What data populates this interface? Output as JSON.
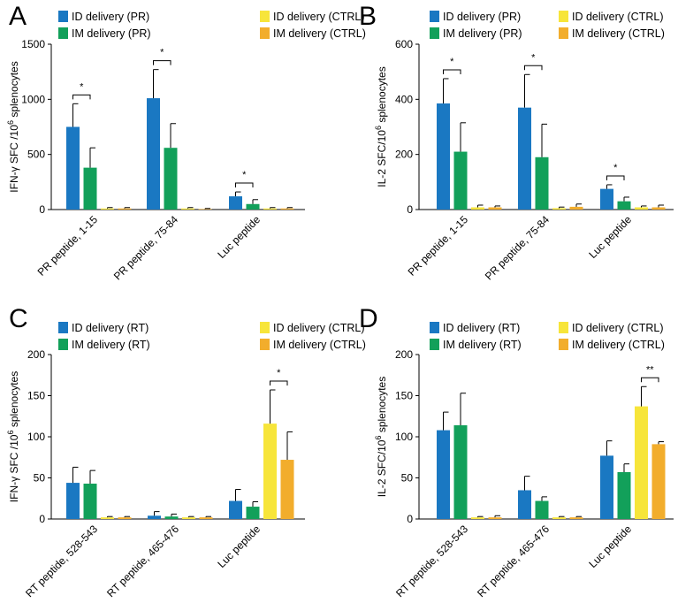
{
  "colors": {
    "id_main": "#1a78c2",
    "im_main": "#12a05a",
    "id_ctrl": "#f7e53a",
    "im_ctrl": "#f2ad2c",
    "axis": "#000000"
  },
  "chart_data": [
    {
      "panel": "A",
      "type": "bar",
      "ylabel_prefix": "IFN-γ SFC /10",
      "ylabel_sup": "6",
      "ylabel_suffix": " splenocytes",
      "ylim": [
        0,
        1500
      ],
      "yticks": [
        "0",
        "500",
        "1000",
        "1500"
      ],
      "ytick_values": [
        0,
        500,
        1000,
        1500
      ],
      "categories": [
        "PR peptide, 1-15",
        "PR peptide, 75-84",
        "Luc peptide"
      ],
      "legend": [
        "ID delivery (PR)",
        "IM delivery (PR)",
        "ID delivery (CTRL)",
        "IM delivery (CTRL)"
      ],
      "series": [
        {
          "name": "ID delivery (PR)",
          "values": [
            750,
            1010,
            120
          ],
          "errors": [
            210,
            260,
            40
          ]
        },
        {
          "name": "IM delivery (PR)",
          "values": [
            380,
            560,
            50
          ],
          "errors": [
            180,
            220,
            40
          ]
        },
        {
          "name": "ID delivery (CTRL)",
          "values": [
            10,
            10,
            10
          ],
          "errors": [
            8,
            8,
            8
          ]
        },
        {
          "name": "IM delivery (CTRL)",
          "values": [
            10,
            5,
            10
          ],
          "errors": [
            8,
            5,
            8
          ]
        }
      ],
      "significance": [
        {
          "category": 0,
          "from": 0,
          "to": 1,
          "label": "*"
        },
        {
          "category": 1,
          "from": 0,
          "to": 1,
          "label": "*"
        },
        {
          "category": 2,
          "from": 0,
          "to": 1,
          "label": "*"
        }
      ]
    },
    {
      "panel": "B",
      "type": "bar",
      "ylabel_prefix": "IL-2 SFC/10",
      "ylabel_sup": "6",
      "ylabel_suffix": " splenocytes",
      "ylim": [
        0,
        600
      ],
      "yticks": [
        "0",
        "200",
        "400",
        "600"
      ],
      "ytick_values": [
        0,
        200,
        400,
        600
      ],
      "categories": [
        "PR peptide, 1-15",
        "PR peptide, 75-84",
        "Luc peptide"
      ],
      "legend": [
        "ID delivery (PR)",
        "IM delivery (PR)",
        "ID delivery (CTRL)",
        "IM delivery (CTRL)"
      ],
      "series": [
        {
          "name": "ID delivery (PR)",
          "values": [
            385,
            370,
            75
          ],
          "errors": [
            90,
            120,
            15
          ]
        },
        {
          "name": "IM delivery (PR)",
          "values": [
            210,
            190,
            30
          ],
          "errors": [
            105,
            120,
            15
          ]
        },
        {
          "name": "ID delivery (CTRL)",
          "values": [
            8,
            5,
            8
          ],
          "errors": [
            8,
            4,
            5
          ]
        },
        {
          "name": "IM delivery (CTRL)",
          "values": [
            8,
            10,
            8
          ],
          "errors": [
            5,
            10,
            8
          ]
        }
      ],
      "significance": [
        {
          "category": 0,
          "from": 0,
          "to": 1,
          "label": "*"
        },
        {
          "category": 1,
          "from": 0,
          "to": 1,
          "label": "*"
        },
        {
          "category": 2,
          "from": 0,
          "to": 1,
          "label": "*"
        }
      ]
    },
    {
      "panel": "C",
      "type": "bar",
      "ylabel_prefix": "IFN-γ SFC /10",
      "ylabel_sup": "6",
      "ylabel_suffix": " splenocytes",
      "ylim": [
        0,
        200
      ],
      "yticks": [
        "0",
        "50",
        "100",
        "150",
        "200"
      ],
      "ytick_values": [
        0,
        50,
        100,
        150,
        200
      ],
      "categories": [
        "RT peptide, 528-543",
        "RT peptide, 465-476",
        "Luc peptide"
      ],
      "legend": [
        "ID delivery (RT)",
        "IM delivery (RT)",
        "ID delivery (CTRL)",
        "IM delivery (CTRL)"
      ],
      "series": [
        {
          "name": "ID delivery (RT)",
          "values": [
            44,
            4,
            22
          ],
          "errors": [
            19,
            5,
            14
          ]
        },
        {
          "name": "IM delivery (RT)",
          "values": [
            43,
            3,
            15
          ],
          "errors": [
            16,
            3,
            6
          ]
        },
        {
          "name": "ID delivery (CTRL)",
          "values": [
            2,
            2,
            116
          ],
          "errors": [
            1,
            1,
            41
          ]
        },
        {
          "name": "IM delivery (CTRL)",
          "values": [
            2,
            2,
            72
          ],
          "errors": [
            1,
            1,
            34
          ]
        }
      ],
      "significance": [
        {
          "category": 2,
          "from": 2,
          "to": 3,
          "label": "*"
        }
      ]
    },
    {
      "panel": "D",
      "type": "bar",
      "ylabel_prefix": "IL-2 SFC/10",
      "ylabel_sup": "6",
      "ylabel_suffix": " splenocytes",
      "ylim": [
        0,
        200
      ],
      "yticks": [
        "0",
        "50",
        "100",
        "150",
        "200"
      ],
      "ytick_values": [
        0,
        50,
        100,
        150,
        200
      ],
      "categories": [
        "RT peptide, 528-543",
        "RT peptide, 465-476",
        "Luc peptide"
      ],
      "legend": [
        "ID delivery (RT)",
        "IM delivery (RT)",
        "ID delivery (CTRL)",
        "IM delivery (CTRL)"
      ],
      "series": [
        {
          "name": "ID delivery (RT)",
          "values": [
            108,
            35,
            77
          ],
          "errors": [
            22,
            17,
            18
          ]
        },
        {
          "name": "IM delivery (RT)",
          "values": [
            114,
            22,
            57
          ],
          "errors": [
            39,
            5,
            10
          ]
        },
        {
          "name": "ID delivery (CTRL)",
          "values": [
            2,
            2,
            137
          ],
          "errors": [
            1,
            1,
            24
          ]
        },
        {
          "name": "IM delivery (CTRL)",
          "values": [
            2,
            2,
            91
          ],
          "errors": [
            2,
            1,
            3
          ]
        }
      ],
      "significance": [
        {
          "category": 2,
          "from": 2,
          "to": 3,
          "label": "**"
        }
      ]
    }
  ]
}
